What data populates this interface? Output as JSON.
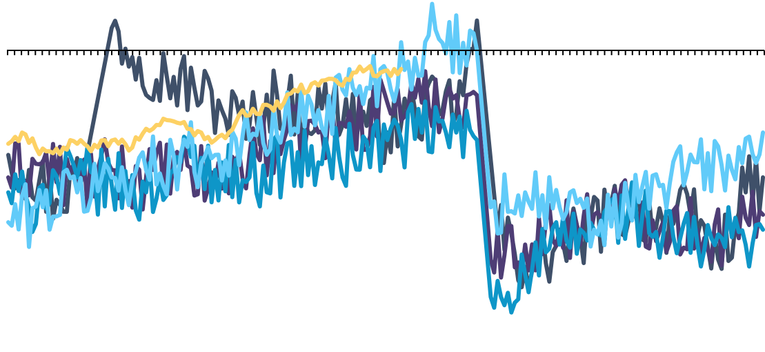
{
  "chart_data": {
    "type": "line",
    "title": "",
    "xlabel": "",
    "ylabel": "",
    "xlim": [
      0,
      219
    ],
    "ylim": [
      -40,
      6
    ],
    "grid": false,
    "legend": "none",
    "reference_line_y": 0,
    "x_tick_count": 110,
    "series": [
      {
        "color": "#3f5069",
        "x": [
          0,
          6,
          14,
          22,
          30,
          38,
          46,
          54,
          62,
          70,
          78,
          86,
          94,
          102,
          110,
          118,
          126,
          132,
          136,
          142,
          150,
          158,
          166,
          174,
          182,
          190,
          198,
          206,
          214,
          219
        ],
        "values": [
          -14,
          -16,
          -20,
          -16,
          3,
          -1,
          -3.5,
          -5,
          -8,
          -10,
          -6,
          -9,
          -7,
          -9,
          -11,
          -8,
          -8,
          -6,
          4,
          -24,
          -29,
          -27,
          -25,
          -22,
          -21,
          -23,
          -22,
          -28,
          -19,
          -17
        ]
      },
      {
        "color": "#4e3d75",
        "x": [
          0,
          10,
          20,
          30,
          40,
          50,
          60,
          70,
          80,
          90,
          100,
          110,
          120,
          130,
          136,
          140,
          150,
          160,
          170,
          180,
          190,
          200,
          210,
          219
        ],
        "values": [
          -17,
          -15,
          -18,
          -16,
          -17,
          -16,
          -18,
          -14,
          -12,
          -11,
          -10,
          -7,
          -7,
          -6,
          -6,
          -28,
          -26,
          -24,
          -22,
          -21,
          -23,
          -24,
          -25,
          -22
        ]
      },
      {
        "color": "#0e96c8",
        "x": [
          0,
          6,
          10,
          20,
          30,
          40,
          50,
          60,
          70,
          80,
          90,
          100,
          110,
          120,
          130,
          136,
          140,
          150,
          160,
          170,
          180,
          190,
          200,
          210,
          219
        ],
        "values": [
          -19,
          -21,
          -18,
          -17,
          -18,
          -19,
          -15,
          -16,
          -17,
          -15,
          -15,
          -14,
          -12,
          -11,
          -11,
          -12,
          -33,
          -30,
          -26,
          -24,
          -21,
          -25,
          -26,
          -25,
          -24
        ]
      },
      {
        "color": "#61cbf9",
        "x": [
          0,
          10,
          20,
          30,
          40,
          50,
          60,
          70,
          80,
          90,
          100,
          110,
          118,
          122,
          126,
          132,
          136,
          140,
          150,
          160,
          170,
          180,
          190,
          200,
          210,
          219
        ],
        "values": [
          -23,
          -21,
          -19,
          -17,
          -16,
          -14,
          -14,
          -12,
          -10,
          -8,
          -5,
          -3,
          -1,
          2,
          1,
          1,
          0,
          -21,
          -19,
          -21,
          -24,
          -21,
          -18,
          -15,
          -16,
          -11
        ]
      },
      {
        "color": "#fdd164",
        "x": [
          0,
          4,
          8,
          12,
          16,
          20,
          24,
          28,
          32,
          36,
          40,
          44,
          48,
          52,
          56,
          60,
          64,
          68,
          72,
          76,
          80,
          84,
          88,
          92,
          96,
          100,
          104,
          108,
          112,
          114
        ],
        "values": [
          -12.5,
          -11,
          -13,
          -13.5,
          -13,
          -12.5,
          -13.5,
          -12,
          -12.5,
          -13,
          -10.5,
          -10,
          -9.5,
          -10.5,
          -11,
          -12,
          -11,
          -8,
          -8.5,
          -7.5,
          -7,
          -5.5,
          -4.5,
          -4,
          -4.5,
          -3,
          -2.5,
          -3,
          -2.5,
          -2.5
        ]
      }
    ]
  }
}
